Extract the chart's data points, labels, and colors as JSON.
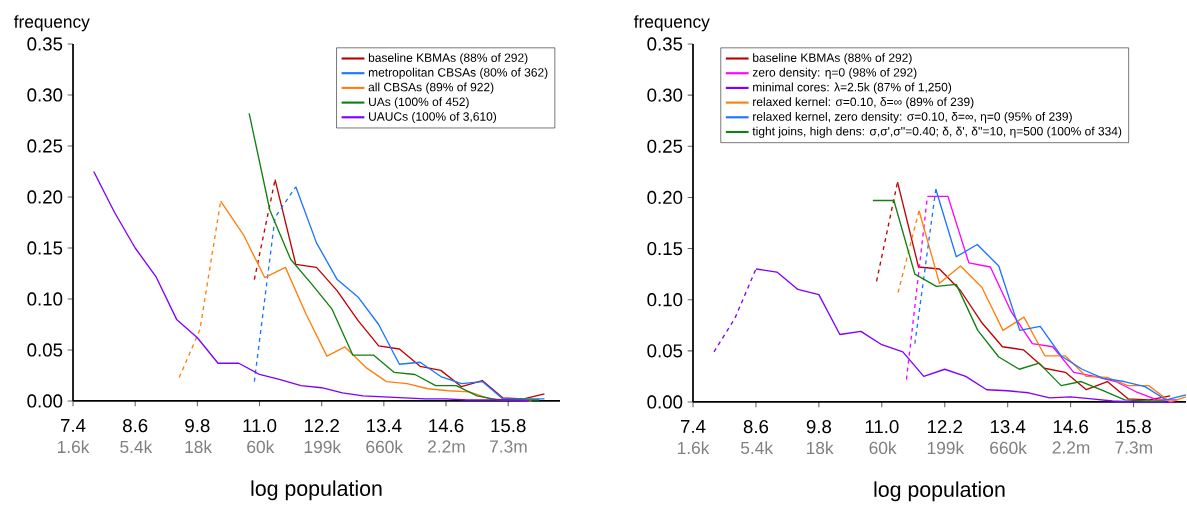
{
  "chart_data": [
    {
      "type": "line",
      "xlabel": "log population",
      "ylabel": "frequency",
      "legend": "top right",
      "xlim": [
        7.4,
        16.8
      ],
      "ylim": [
        0,
        0.35
      ],
      "xticks": [
        {
          "value": 7.4,
          "label": "7.4"
        },
        {
          "value": 8.6,
          "label": "8.6"
        },
        {
          "value": 9.8,
          "label": "9.8"
        },
        {
          "value": 11.0,
          "label": "11.0"
        },
        {
          "value": 12.2,
          "label": "12.2"
        },
        {
          "value": 13.4,
          "label": "13.4"
        },
        {
          "value": 14.6,
          "label": "14.6"
        },
        {
          "value": 15.8,
          "label": "15.8"
        }
      ],
      "log": "x2",
      "x2lim": [
        1600,
        19800000
      ],
      "x2ticks": [
        {
          "value": 1600,
          "label": "1.6k"
        },
        {
          "value": 5400,
          "label": "5.4k"
        },
        {
          "value": 18000,
          "label": "18k"
        },
        {
          "value": 60000,
          "label": "60k"
        },
        {
          "value": 199000,
          "label": "199k"
        },
        {
          "value": 660000,
          "label": "660k"
        },
        {
          "value": 2200000,
          "label": "2.2m"
        },
        {
          "value": 7300000,
          "label": "7.3m"
        }
      ],
      "yticks": [
        {
          "value": 0,
          "label": "0.00"
        },
        {
          "value": 0.05,
          "label": "0.05"
        },
        {
          "value": 0.1,
          "label": "0.10"
        },
        {
          "value": 0.15,
          "label": "0.15"
        },
        {
          "value": 0.2,
          "label": "0.20"
        },
        {
          "value": 0.25,
          "label": "0.25"
        },
        {
          "value": 0.3,
          "label": "0.30"
        },
        {
          "value": 0.35,
          "label": "0.35"
        }
      ],
      "series": [
        {
          "name": "baseline KBMAs (88% of 292)",
          "color": "#c00000",
          "line_style": "solid",
          "x": [
            11.3,
            11.7,
            12.1,
            12.5,
            12.9,
            13.3,
            13.7,
            14.1,
            14.5,
            14.9,
            15.3,
            15.7,
            16.1,
            16.5
          ],
          "values": [
            0.217,
            0.134,
            0.131,
            0.108,
            0.079,
            0.054,
            0.051,
            0.034,
            0.03,
            0.014,
            0.02,
            0.003,
            0.002,
            0.007
          ]
        },
        {
          "color": "#c00000",
          "line_style": "dashed",
          "x": [
            10.9,
            11.3
          ],
          "values": [
            0.119,
            0.217
          ]
        },
        {
          "name": "metropolitan CBSAs (80% of 362)",
          "color": "#1a75ff",
          "line_style": "solid",
          "x": [
            11.7,
            12.1,
            12.5,
            12.9,
            13.3,
            13.7,
            14.1,
            14.5,
            14.9,
            15.3,
            15.7,
            16.1,
            16.5
          ],
          "values": [
            0.21,
            0.155,
            0.119,
            0.102,
            0.075,
            0.036,
            0.038,
            0.024,
            0.017,
            0.019,
            0.002,
            0.002,
            0.002
          ]
        },
        {
          "color": "#1a75ff",
          "line_style": "dashed",
          "x": [
            10.9,
            11.3,
            11.7
          ],
          "values": [
            0.019,
            0.18,
            0.21
          ]
        },
        {
          "name": "all CBSAs (89% of 922)",
          "color": "#ff7f0e",
          "line_style": "solid",
          "x": [
            10.25,
            10.7,
            11.1,
            11.5,
            11.9,
            12.3,
            12.65,
            13.05,
            13.45,
            13.85,
            14.25,
            14.65,
            15.05,
            15.45,
            15.85,
            16.25
          ],
          "values": [
            0.196,
            0.162,
            0.121,
            0.131,
            0.085,
            0.044,
            0.053,
            0.033,
            0.019,
            0.017,
            0.012,
            0.01,
            0.009,
            0.002,
            0.001,
            0.0
          ]
        },
        {
          "color": "#ff7f0e",
          "line_style": "dashed",
          "x": [
            9.45,
            9.85,
            10.25
          ],
          "values": [
            0.023,
            0.07,
            0.196
          ]
        },
        {
          "name": "UAs (100% of 452)",
          "color": "#108010",
          "line_style": "solid",
          "x": [
            10.8,
            11.2,
            11.6,
            12.0,
            12.4,
            12.8,
            13.2,
            13.6,
            14.0,
            14.4,
            14.8,
            15.2,
            15.6,
            16.0,
            16.4
          ],
          "values": [
            0.282,
            0.187,
            0.139,
            0.115,
            0.09,
            0.045,
            0.045,
            0.028,
            0.026,
            0.015,
            0.015,
            0.005,
            0.001,
            0.001,
            0.001
          ]
        },
        {
          "name": "UAUCs (100% of 3,610)",
          "color": "#7f00ff",
          "line_style": "solid",
          "x": [
            7.8,
            8.2,
            8.6,
            9.0,
            9.4,
            9.8,
            10.2,
            10.6,
            11.0,
            11.4,
            11.8,
            12.2,
            12.6,
            13.0,
            13.4,
            13.8,
            14.2,
            14.6,
            15.0,
            15.4,
            15.8,
            16.2
          ],
          "values": [
            0.225,
            0.185,
            0.15,
            0.122,
            0.08,
            0.062,
            0.037,
            0.037,
            0.026,
            0.021,
            0.015,
            0.013,
            0.008,
            0.005,
            0.004,
            0.003,
            0.002,
            0.002,
            0.001,
            0.001,
            0.001,
            0.0
          ]
        }
      ]
    },
    {
      "type": "line",
      "xlabel": "log population",
      "ylabel": "frequency",
      "legend": "top",
      "xlim": [
        7.4,
        16.8
      ],
      "ylim": [
        0,
        0.35
      ],
      "xticks": [
        {
          "value": 7.4,
          "label": "7.4"
        },
        {
          "value": 8.6,
          "label": "8.6"
        },
        {
          "value": 9.8,
          "label": "9.8"
        },
        {
          "value": 11.0,
          "label": "11.0"
        },
        {
          "value": 12.2,
          "label": "12.2"
        },
        {
          "value": 13.4,
          "label": "13.4"
        },
        {
          "value": 14.6,
          "label": "14.6"
        },
        {
          "value": 15.8,
          "label": "15.8"
        }
      ],
      "log": "x2",
      "x2lim": [
        1600,
        19800000
      ],
      "x2ticks": [
        {
          "value": 1600,
          "label": "1.6k"
        },
        {
          "value": 5400,
          "label": "5.4k"
        },
        {
          "value": 18000,
          "label": "18k"
        },
        {
          "value": 60000,
          "label": "60k"
        },
        {
          "value": 199000,
          "label": "199k"
        },
        {
          "value": 660000,
          "label": "660k"
        },
        {
          "value": 2200000,
          "label": "2.2m"
        },
        {
          "value": 7300000,
          "label": "7.3m"
        }
      ],
      "yticks": [
        {
          "value": 0,
          "label": "0.00"
        },
        {
          "value": 0.05,
          "label": "0.05"
        },
        {
          "value": 0.1,
          "label": "0.10"
        },
        {
          "value": 0.15,
          "label": "0.15"
        },
        {
          "value": 0.2,
          "label": "0.20"
        },
        {
          "value": 0.25,
          "label": "0.25"
        },
        {
          "value": 0.3,
          "label": "0.30"
        },
        {
          "value": 0.35,
          "label": "0.35"
        }
      ],
      "series": [
        {
          "name": "baseline KBMAs (88% of 292)",
          "color": "#c00000",
          "line_style": "solid",
          "x": [
            11.3,
            11.7,
            12.1,
            12.5,
            12.9,
            13.3,
            13.7,
            14.1,
            14.5,
            14.9,
            15.3,
            15.7,
            16.1,
            16.5
          ],
          "values": [
            0.215,
            0.132,
            0.13,
            0.109,
            0.078,
            0.054,
            0.051,
            0.033,
            0.029,
            0.012,
            0.02,
            0.003,
            0.002,
            0.006
          ]
        },
        {
          "color": "#c00000",
          "line_style": "dashed",
          "x": [
            10.9,
            11.3
          ],
          "values": [
            0.118,
            0.215
          ]
        },
        {
          "name": "zero density: η=0 (98% of 292)",
          "color": "#ff00ff",
          "line_style": "solid",
          "x": [
            11.87,
            12.26,
            12.66,
            13.07,
            13.47,
            13.87,
            14.26,
            14.66,
            15.06,
            15.46,
            15.85,
            16.25,
            16.64
          ],
          "values": [
            0.201,
            0.201,
            0.136,
            0.132,
            0.088,
            0.057,
            0.054,
            0.029,
            0.025,
            0.02,
            0.01,
            0.002,
            0.002
          ]
        },
        {
          "color": "#ff00ff",
          "line_style": "dashed",
          "x": [
            11.47,
            11.87
          ],
          "values": [
            0.022,
            0.201
          ]
        },
        {
          "name": "minimal cores: λ=2.5k (87% of 1,250)",
          "color": "#7f00ff",
          "line_style": "solid",
          "x": [
            8.6,
            9.0,
            9.4,
            9.8,
            10.2,
            10.6,
            11.0,
            11.4,
            11.8,
            12.2,
            12.6,
            13.0,
            13.4,
            13.8,
            14.2,
            14.6,
            15.0,
            15.4,
            15.8,
            16.2,
            16.6
          ],
          "values": [
            0.13,
            0.127,
            0.11,
            0.105,
            0.066,
            0.069,
            0.056,
            0.049,
            0.025,
            0.032,
            0.025,
            0.012,
            0.011,
            0.009,
            0.004,
            0.005,
            0.003,
            0.001,
            0.0,
            0.0,
            0.0
          ]
        },
        {
          "color": "#7f00ff",
          "line_style": "dashed",
          "x": [
            7.8,
            8.2,
            8.6
          ],
          "values": [
            0.049,
            0.082,
            0.13
          ]
        },
        {
          "name": "relaxed kernel: σ=0.10, δ=∞ (89% of 239)",
          "color": "#ff7f0e",
          "line_style": "solid",
          "x": [
            11.71,
            12.1,
            12.5,
            12.91,
            13.31,
            13.71,
            14.11,
            14.5,
            14.9,
            15.3,
            15.69,
            16.09,
            16.5,
            16.8
          ],
          "values": [
            0.187,
            0.116,
            0.133,
            0.112,
            0.07,
            0.083,
            0.045,
            0.045,
            0.025,
            0.024,
            0.016,
            0.016,
            0.0,
            0.005
          ]
        },
        {
          "color": "#ff7f0e",
          "line_style": "dashed",
          "x": [
            11.31,
            11.71
          ],
          "values": [
            0.107,
            0.187
          ]
        },
        {
          "name": "relaxed kernel, zero density: σ=0.10, δ=∞, η=0 (95% of 239)",
          "color": "#1a75ff",
          "line_style": "solid",
          "x": [
            12.03,
            12.42,
            12.82,
            13.23,
            13.63,
            14.02,
            14.42,
            14.82,
            15.22,
            15.62,
            16.02,
            16.42,
            16.8
          ],
          "values": [
            0.208,
            0.142,
            0.154,
            0.133,
            0.07,
            0.074,
            0.045,
            0.032,
            0.023,
            0.02,
            0.015,
            0.002,
            0.007
          ]
        },
        {
          "color": "#1a75ff",
          "line_style": "dashed",
          "x": [
            11.63,
            12.03
          ],
          "values": [
            0.057,
            0.208
          ]
        },
        {
          "name": "tight joins, high dens: σ,σ',σ''=0.40; δ, δ', δ''=10, η=500 (100% of 334)",
          "color": "#108010",
          "line_style": "solid",
          "x": [
            10.83,
            11.23,
            11.63,
            12.04,
            12.42,
            12.83,
            13.23,
            13.62,
            14.0,
            14.42,
            14.8,
            15.22,
            15.63,
            16.04,
            16.4
          ],
          "values": [
            0.197,
            0.197,
            0.125,
            0.113,
            0.115,
            0.07,
            0.044,
            0.032,
            0.038,
            0.016,
            0.02,
            0.011,
            0.002,
            0.001,
            0.001
          ]
        }
      ]
    }
  ]
}
